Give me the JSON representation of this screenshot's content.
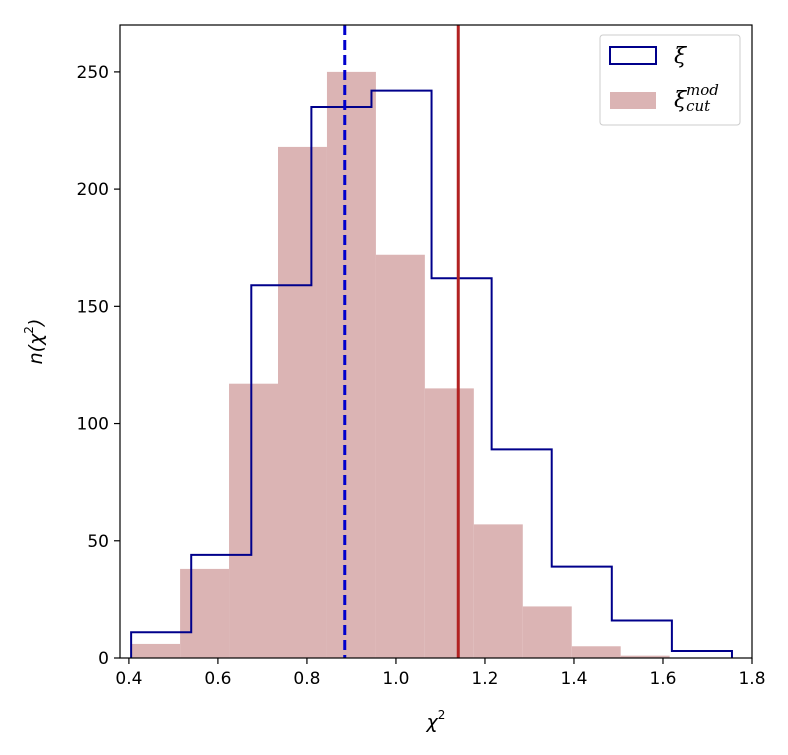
{
  "chart_data": {
    "type": "histogram",
    "xlabel": "χ",
    "xlabel_sup": "2",
    "ylabel_pre": "n(χ",
    "ylabel_sup": "2",
    "ylabel_post": ")",
    "xlim": [
      0.38,
      1.8
    ],
    "ylim": [
      0,
      270
    ],
    "x_ticks": [
      "0.4",
      "0.6",
      "0.8",
      "1.0",
      "1.2",
      "1.4",
      "1.6",
      "1.8"
    ],
    "y_ticks": [
      "0",
      "50",
      "100",
      "150",
      "200",
      "250"
    ],
    "series": [
      {
        "name": "ξ",
        "style": "step",
        "color": "#00008b",
        "edges": [
          0.405,
          0.54,
          0.675,
          0.81,
          0.945,
          1.08,
          1.215,
          1.35,
          1.485,
          1.62,
          1.755
        ],
        "counts": [
          11,
          44,
          159,
          235,
          242,
          162,
          89,
          39,
          16,
          3
        ]
      },
      {
        "name_base": "ξ",
        "name_sub": "cut",
        "name_sup": "mod",
        "style": "filled",
        "color": "#dbb4b4",
        "edges": [
          0.405,
          0.515,
          0.625,
          0.735,
          0.845,
          0.955,
          1.065,
          1.175,
          1.285,
          1.395,
          1.505,
          1.615,
          1.725
        ],
        "counts": [
          6,
          38,
          117,
          218,
          250,
          172,
          115,
          57,
          22,
          5,
          1,
          0
        ]
      }
    ],
    "vlines": [
      {
        "x": 0.885,
        "color": "#0000cd",
        "style": "dashed"
      },
      {
        "x": 1.14,
        "color": "#b22222",
        "style": "solid"
      }
    ],
    "legend": "top-right"
  }
}
